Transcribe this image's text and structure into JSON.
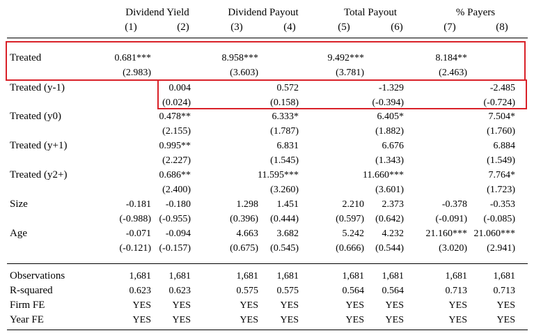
{
  "table": {
    "groups": [
      "Dividend Yield",
      "Dividend Payout",
      "Total Payout",
      "% Payers"
    ],
    "col_numbers": [
      "(1)",
      "(2)",
      "(3)",
      "(4)",
      "(5)",
      "(6)",
      "(7)",
      "(8)"
    ],
    "rows": [
      {
        "label": "Treated",
        "coef": [
          "0.681***",
          "",
          "8.958***",
          "",
          "9.492***",
          "",
          "8.184**",
          ""
        ],
        "se": [
          "(2.983)",
          "",
          "(3.603)",
          "",
          "(3.781)",
          "",
          "(2.463)",
          ""
        ]
      },
      {
        "label": "Treated (y-1)",
        "coef": [
          "",
          "0.004",
          "",
          "0.572",
          "",
          "-1.329",
          "",
          "-2.485"
        ],
        "se": [
          "",
          "(0.024)",
          "",
          "(0.158)",
          "",
          "(-0.394)",
          "",
          "(-0.724)"
        ]
      },
      {
        "label": "Treated (y0)",
        "coef": [
          "",
          "0.478**",
          "",
          "6.333*",
          "",
          "6.405*",
          "",
          "7.504*"
        ],
        "se": [
          "",
          "(2.155)",
          "",
          "(1.787)",
          "",
          "(1.882)",
          "",
          "(1.760)"
        ]
      },
      {
        "label": "Treated (y+1)",
        "coef": [
          "",
          "0.995**",
          "",
          "6.831",
          "",
          "6.676",
          "",
          "6.884"
        ],
        "se": [
          "",
          "(2.227)",
          "",
          "(1.545)",
          "",
          "(1.343)",
          "",
          "(1.549)"
        ]
      },
      {
        "label": "Treated (y2+)",
        "coef": [
          "",
          "0.686**",
          "",
          "11.595***",
          "",
          "11.660***",
          "",
          "7.764*"
        ],
        "se": [
          "",
          "(2.400)",
          "",
          "(3.260)",
          "",
          "(3.601)",
          "",
          "(1.723)"
        ]
      },
      {
        "label": "Size",
        "coef": [
          "-0.181",
          "-0.180",
          "1.298",
          "1.451",
          "2.210",
          "2.373",
          "-0.378",
          "-0.353"
        ],
        "se": [
          "(-0.988)",
          "(-0.955)",
          "(0.396)",
          "(0.444)",
          "(0.597)",
          "(0.642)",
          "(-0.091)",
          "(-0.085)"
        ]
      },
      {
        "label": "Age",
        "coef": [
          "-0.071",
          "-0.094",
          "4.663",
          "3.682",
          "5.242",
          "4.232",
          "21.160***",
          "21.060***"
        ],
        "se": [
          "(-0.121)",
          "(-0.157)",
          "(0.675)",
          "(0.545)",
          "(0.666)",
          "(0.544)",
          "(3.020)",
          "(2.941)"
        ]
      }
    ],
    "stats": [
      {
        "label": "Observations",
        "values": [
          "1,681",
          "1,681",
          "1,681",
          "1,681",
          "1,681",
          "1,681",
          "1,681",
          "1,681"
        ]
      },
      {
        "label": "R-squared",
        "values": [
          "0.623",
          "0.623",
          "0.575",
          "0.575",
          "0.564",
          "0.564",
          "0.713",
          "0.713"
        ]
      },
      {
        "label": "Firm FE",
        "values": [
          "YES",
          "YES",
          "YES",
          "YES",
          "YES",
          "YES",
          "YES",
          "YES"
        ]
      },
      {
        "label": "Year FE",
        "values": [
          "YES",
          "YES",
          "YES",
          "YES",
          "YES",
          "YES",
          "YES",
          "YES"
        ]
      }
    ]
  },
  "highlight_color": "#d92128"
}
